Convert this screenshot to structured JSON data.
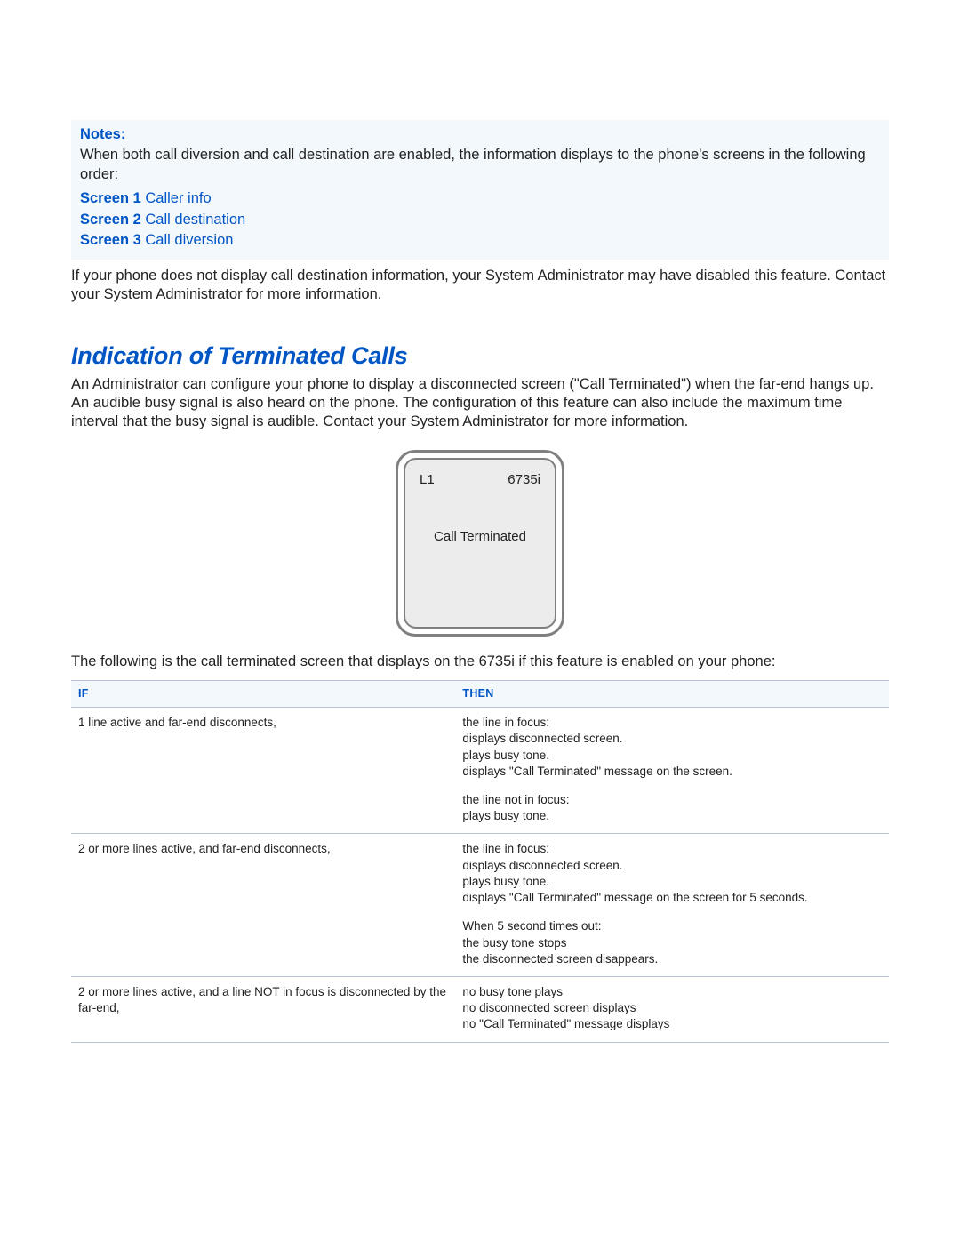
{
  "colors": {
    "accent_blue": "#0055c4",
    "note_bg": "#f3f8fd",
    "rule": "#b8c4d6",
    "phone_border": "#808080",
    "phone_screen_bg": "#ececec",
    "body_text": "#222222"
  },
  "typography": {
    "body_fontsize_pt": 12,
    "table_fontsize_pt": 10,
    "heading_fontsize_pt": 20,
    "heading_style": "italic bold"
  },
  "notes": {
    "title": "Notes:",
    "body": "When both call diversion and call destination are enabled, the information displays to the phone's screens in the following order:",
    "screens": [
      {
        "label": "Screen 1",
        "text": " Caller info"
      },
      {
        "label": "Screen 2",
        "text": " Call destination"
      },
      {
        "label": "Screen 3",
        "text": " Call diversion"
      }
    ]
  },
  "after_notes": "If your phone does not display call destination information, your System Administrator may have disabled this feature. Contact your System Administrator for more information.",
  "section": {
    "title": "Indication of Terminated Calls",
    "body": "An Administrator can configure your phone to display a disconnected screen (\"Call Terminated\") when the far-end hangs up. An audible busy signal is also heard on the phone. The configuration of this feature can also include the maximum time interval that the busy signal is audible. Contact your System Administrator for more information."
  },
  "phone_screen": {
    "line_label": "L1",
    "model": "6735i",
    "message": "Call Terminated"
  },
  "figure_caption": "The following is the call terminated screen that displays on the 6735i if this feature is enabled on your phone:",
  "table": {
    "columns": [
      "IF",
      "THEN"
    ],
    "column_widths_pct": [
      47,
      53
    ],
    "rows": [
      {
        "if": "1 line active and far-end disconnects,",
        "then": [
          [
            "the line in focus:",
            "displays disconnected screen.",
            "plays busy tone.",
            "displays \"Call Terminated\" message on the screen."
          ],
          [
            "the line not in focus:",
            "plays busy tone."
          ]
        ]
      },
      {
        "if": "2 or more lines active, and far-end disconnects,",
        "then": [
          [
            "the line in focus:",
            "displays disconnected screen.",
            "plays busy tone.",
            "displays \"Call Terminated\" message on the screen for 5 seconds."
          ],
          [
            "When 5 second times out:",
            "the busy tone stops",
            "the disconnected screen disappears."
          ]
        ]
      },
      {
        "if": "2 or more lines active, and a line NOT in focus is disconnected by the far-end,",
        "then": [
          [
            "no busy tone plays",
            "no disconnected screen displays",
            "no \"Call Terminated\" message displays"
          ]
        ]
      }
    ]
  }
}
